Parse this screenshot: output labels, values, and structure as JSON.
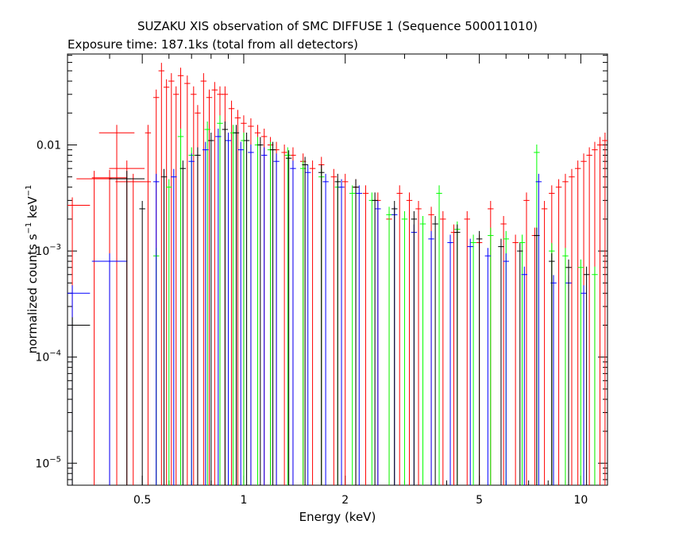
{
  "chart_data": {
    "type": "scatter",
    "title": "SUZAKU XIS observation of SMC DIFFUSE 1 (Sequence 500011010)",
    "subtitle": "Exposure time: 187.1ks (total from all detectors)",
    "xlabel": "Energy (keV)",
    "ylabel_main": "normalized counts s",
    "ylabel_exp1": "−1",
    "ylabel_mid": " keV",
    "ylabel_exp2": "−1",
    "xscale": "log",
    "yscale": "log",
    "xlim": [
      0.3,
      12.0
    ],
    "ylim": [
      6.2e-06,
      0.072
    ],
    "grid": false,
    "x_ticks": [
      {
        "value": 0.5,
        "label": "0.5"
      },
      {
        "value": 1,
        "label": "1"
      },
      {
        "value": 2,
        "label": "2"
      },
      {
        "value": 5,
        "label": "5"
      },
      {
        "value": 10,
        "label": "10"
      }
    ],
    "y_ticks": [
      {
        "value": 0.01,
        "base": "0.01",
        "exp": ""
      },
      {
        "value": 0.001,
        "base": "10",
        "exp": "−3"
      },
      {
        "value": 0.0001,
        "base": "10",
        "exp": "−4"
      },
      {
        "value": 1e-05,
        "base": "10",
        "exp": "−5"
      }
    ],
    "series": [
      {
        "color": "#ff0000",
        "points": [
          [
            0.31,
            0.0027
          ],
          [
            0.36,
            0.0048
          ],
          [
            0.4,
            0.0049
          ],
          [
            0.42,
            0.013
          ],
          [
            0.45,
            0.006
          ],
          [
            0.47,
            0.0045
          ],
          [
            0.52,
            0.013
          ],
          [
            0.55,
            0.028
          ],
          [
            0.57,
            0.05
          ],
          [
            0.59,
            0.035
          ],
          [
            0.61,
            0.04
          ],
          [
            0.63,
            0.03
          ],
          [
            0.65,
            0.045
          ],
          [
            0.68,
            0.038
          ],
          [
            0.71,
            0.03
          ],
          [
            0.73,
            0.02
          ],
          [
            0.76,
            0.04
          ],
          [
            0.79,
            0.028
          ],
          [
            0.82,
            0.033
          ],
          [
            0.85,
            0.03
          ],
          [
            0.88,
            0.03
          ],
          [
            0.92,
            0.022
          ],
          [
            0.96,
            0.018
          ],
          [
            1.0,
            0.016
          ],
          [
            1.05,
            0.015
          ],
          [
            1.1,
            0.013
          ],
          [
            1.15,
            0.012
          ],
          [
            1.2,
            0.01
          ],
          [
            1.25,
            0.009
          ],
          [
            1.32,
            0.0085
          ],
          [
            1.4,
            0.008
          ],
          [
            1.5,
            0.007
          ],
          [
            1.6,
            0.006
          ],
          [
            1.7,
            0.0065
          ],
          [
            1.85,
            0.005
          ],
          [
            2.0,
            0.0045
          ],
          [
            2.15,
            0.004
          ],
          [
            2.3,
            0.0035
          ],
          [
            2.5,
            0.003
          ],
          [
            2.7,
            0.002
          ],
          [
            2.9,
            0.0035
          ],
          [
            3.1,
            0.003
          ],
          [
            3.3,
            0.0025
          ],
          [
            3.6,
            0.0022
          ],
          [
            3.9,
            0.002
          ],
          [
            4.2,
            0.0015
          ],
          [
            4.6,
            0.002
          ],
          [
            5.0,
            0.0012
          ],
          [
            5.4,
            0.0025
          ],
          [
            5.9,
            0.0018
          ],
          [
            6.4,
            0.0012
          ],
          [
            6.9,
            0.003
          ],
          [
            7.3,
            0.0014
          ],
          [
            7.8,
            0.0025
          ],
          [
            8.2,
            0.0035
          ],
          [
            8.6,
            0.004
          ],
          [
            9.0,
            0.0045
          ],
          [
            9.4,
            0.005
          ],
          [
            9.8,
            0.006
          ],
          [
            10.2,
            0.007
          ],
          [
            10.6,
            0.008
          ],
          [
            11.0,
            0.009
          ],
          [
            11.4,
            0.01
          ],
          [
            11.8,
            0.011
          ]
        ]
      },
      {
        "color": "#00ff00",
        "points": [
          [
            0.31,
            0.0002
          ],
          [
            0.55,
            0.0009
          ],
          [
            0.6,
            0.004
          ],
          [
            0.65,
            0.012
          ],
          [
            0.7,
            0.008
          ],
          [
            0.78,
            0.014
          ],
          [
            0.85,
            0.016
          ],
          [
            0.93,
            0.013
          ],
          [
            1.0,
            0.011
          ],
          [
            1.1,
            0.01
          ],
          [
            1.2,
            0.009
          ],
          [
            1.35,
            0.008
          ],
          [
            1.5,
            0.006
          ],
          [
            1.7,
            0.005
          ],
          [
            1.9,
            0.004
          ],
          [
            2.1,
            0.0035
          ],
          [
            2.4,
            0.003
          ],
          [
            2.7,
            0.0022
          ],
          [
            3.0,
            0.002
          ],
          [
            3.4,
            0.0018
          ],
          [
            3.8,
            0.0035
          ],
          [
            4.3,
            0.0016
          ],
          [
            4.8,
            0.0012
          ],
          [
            5.4,
            0.0014
          ],
          [
            6.0,
            0.0013
          ],
          [
            6.7,
            0.0012
          ],
          [
            7.4,
            0.0085
          ],
          [
            8.2,
            0.001
          ],
          [
            9.0,
            0.0009
          ],
          [
            10.0,
            0.0007
          ],
          [
            11.0,
            0.0006
          ]
        ]
      },
      {
        "color": "#0000ff",
        "points": [
          [
            0.31,
            0.0004
          ],
          [
            0.4,
            0.0008
          ],
          [
            0.55,
            0.0045
          ],
          [
            0.62,
            0.005
          ],
          [
            0.7,
            0.007
          ],
          [
            0.77,
            0.009
          ],
          [
            0.84,
            0.012
          ],
          [
            0.9,
            0.011
          ],
          [
            0.98,
            0.009
          ],
          [
            1.05,
            0.0085
          ],
          [
            1.15,
            0.008
          ],
          [
            1.25,
            0.007
          ],
          [
            1.4,
            0.006
          ],
          [
            1.55,
            0.0055
          ],
          [
            1.75,
            0.0045
          ],
          [
            1.95,
            0.004
          ],
          [
            2.2,
            0.0035
          ],
          [
            2.5,
            0.0025
          ],
          [
            2.8,
            0.0022
          ],
          [
            3.2,
            0.0015
          ],
          [
            3.6,
            0.0013
          ],
          [
            4.1,
            0.0012
          ],
          [
            4.7,
            0.0011
          ],
          [
            5.3,
            0.0009
          ],
          [
            6.0,
            0.0008
          ],
          [
            6.8,
            0.0006
          ],
          [
            7.5,
            0.0045
          ],
          [
            8.3,
            0.0005
          ],
          [
            9.2,
            0.0005
          ],
          [
            10.2,
            0.0004
          ]
        ]
      },
      {
        "color": "#000000",
        "points": [
          [
            0.31,
            0.0002
          ],
          [
            0.45,
            0.0048
          ],
          [
            0.5,
            0.0025
          ],
          [
            0.58,
            0.005
          ],
          [
            0.66,
            0.006
          ],
          [
            0.73,
            0.008
          ],
          [
            0.8,
            0.011
          ],
          [
            0.88,
            0.014
          ],
          [
            0.95,
            0.013
          ],
          [
            1.02,
            0.011
          ],
          [
            1.12,
            0.01
          ],
          [
            1.22,
            0.009
          ],
          [
            1.36,
            0.0075
          ],
          [
            1.52,
            0.0065
          ],
          [
            1.7,
            0.0055
          ],
          [
            1.9,
            0.0045
          ],
          [
            2.15,
            0.004
          ],
          [
            2.45,
            0.003
          ],
          [
            2.8,
            0.0025
          ],
          [
            3.2,
            0.002
          ],
          [
            3.7,
            0.0018
          ],
          [
            4.3,
            0.0015
          ],
          [
            5.0,
            0.0013
          ],
          [
            5.8,
            0.0011
          ],
          [
            6.6,
            0.001
          ],
          [
            7.4,
            0.0014
          ],
          [
            8.2,
            0.0008
          ],
          [
            9.2,
            0.0007
          ],
          [
            10.4,
            0.0006
          ]
        ]
      }
    ]
  }
}
